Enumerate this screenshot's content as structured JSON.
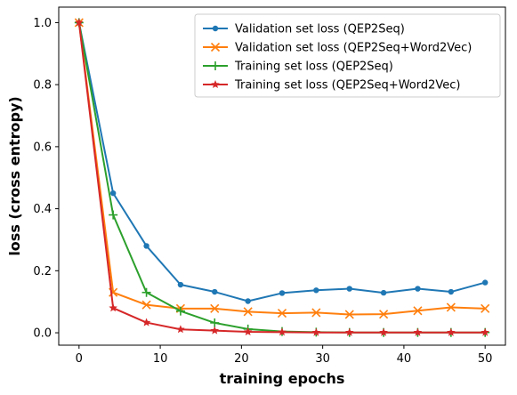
{
  "chart_data": {
    "type": "line",
    "title": "",
    "xlabel": "training epochs",
    "ylabel": "loss (cross entropy)",
    "xlim": [
      -2.5,
      52.5
    ],
    "ylim": [
      -0.04,
      1.05
    ],
    "xticks": [
      0,
      10,
      20,
      30,
      40,
      50
    ],
    "yticks": [
      0.0,
      0.2,
      0.4,
      0.6,
      0.8,
      1.0
    ],
    "xtick_labels": [
      "0",
      "10",
      "20",
      "30",
      "40",
      "50"
    ],
    "ytick_labels": [
      "0.0",
      "0.2",
      "0.4",
      "0.6",
      "0.8",
      "1.0"
    ],
    "grid": false,
    "legend_position": "top-right",
    "x": [
      0,
      4.2,
      8.3,
      12.5,
      16.7,
      20.8,
      25,
      29.2,
      33.3,
      37.5,
      41.7,
      45.8,
      50
    ],
    "series": [
      {
        "name": "Validation set loss (QEP2Seq)",
        "color": "#1f77b4",
        "marker": "circle",
        "values": [
          1.0,
          0.45,
          0.28,
          0.155,
          0.132,
          0.102,
          0.128,
          0.137,
          0.142,
          0.129,
          0.142,
          0.132,
          0.162
        ]
      },
      {
        "name": "Validation set loss (QEP2Seq+Word2Vec)",
        "color": "#ff7f0e",
        "marker": "x",
        "values": [
          1.0,
          0.13,
          0.09,
          0.078,
          0.078,
          0.068,
          0.063,
          0.065,
          0.059,
          0.06,
          0.071,
          0.082,
          0.078
        ]
      },
      {
        "name": "Training set loss (QEP2Seq)",
        "color": "#2ca02c",
        "marker": "plus",
        "values": [
          1.0,
          0.38,
          0.13,
          0.07,
          0.032,
          0.012,
          0.004,
          0.002,
          0.001,
          0.001,
          0.001,
          0.001,
          0.001
        ]
      },
      {
        "name": "Training set loss (QEP2Seq+Word2Vec)",
        "color": "#d62728",
        "marker": "star",
        "values": [
          1.0,
          0.08,
          0.033,
          0.011,
          0.007,
          0.003,
          0.002,
          0.001,
          0.001,
          0.001,
          0.001,
          0.001,
          0.001
        ]
      }
    ]
  }
}
